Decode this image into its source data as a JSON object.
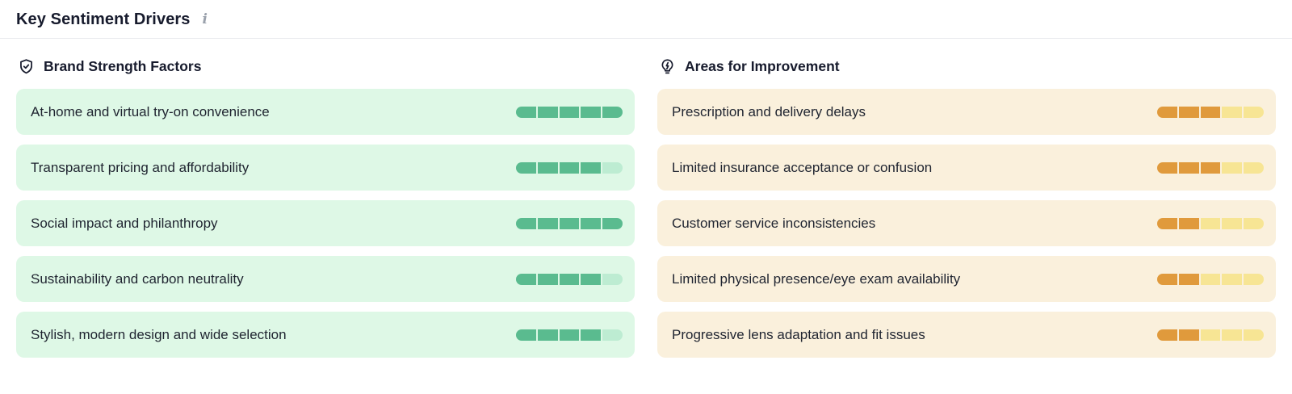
{
  "panel": {
    "title": "Key Sentiment Drivers",
    "info_icon_glyph": "i"
  },
  "colors": {
    "green_fill": "#5abb8f",
    "green_empty": "#bdecd2",
    "green_bg": "#def8e6",
    "orange_fill": "#e09a3c",
    "orange_empty": "#f7e594",
    "orange_bg": "#faf0dc"
  },
  "columns": [
    {
      "id": "strengths",
      "heading": "Brand Strength Factors",
      "icon": "shield-check-icon",
      "items": [
        {
          "label": "At-home and virtual try-on convenience",
          "score": 5,
          "max": 5
        },
        {
          "label": "Transparent pricing and affordability",
          "score": 4,
          "max": 5
        },
        {
          "label": "Social impact and philanthropy",
          "score": 5,
          "max": 5
        },
        {
          "label": "Sustainability and carbon neutrality",
          "score": 4,
          "max": 5
        },
        {
          "label": "Stylish, modern design and wide selection",
          "score": 4,
          "max": 5
        }
      ]
    },
    {
      "id": "improvements",
      "heading": "Areas for Improvement",
      "icon": "lightbulb-icon",
      "items": [
        {
          "label": "Prescription and delivery delays",
          "score": 3,
          "max": 5
        },
        {
          "label": "Limited insurance acceptance or confusion",
          "score": 3,
          "max": 5
        },
        {
          "label": "Customer service inconsistencies",
          "score": 2,
          "max": 5
        },
        {
          "label": "Limited physical presence/eye exam availability",
          "score": 2,
          "max": 5
        },
        {
          "label": "Progressive lens adaptation and fit issues",
          "score": 2,
          "max": 5
        }
      ]
    }
  ]
}
